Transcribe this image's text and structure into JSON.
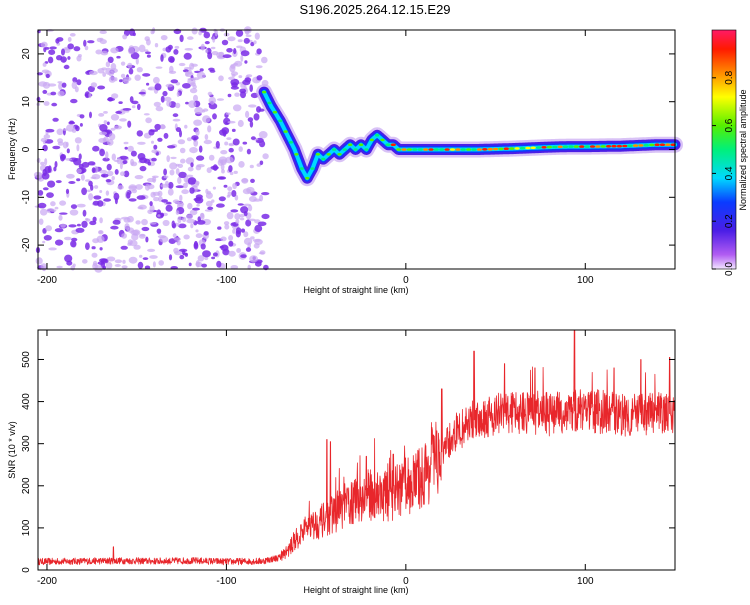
{
  "title": "S196.2025.264.12.15.E29",
  "colorbar": {
    "label": "Normalized spectral amplitude",
    "range": [
      0,
      1
    ],
    "ticks": [
      "0.0",
      "0.2",
      "0.4",
      "0.6",
      "0.8"
    ]
  },
  "colors": {
    "snr_line": "#e8262b",
    "grid_outline": "#000000",
    "noise_purple": "#7a2be6",
    "noise_purple_light": "#c9a8f2"
  },
  "chart_data": [
    {
      "type": "heatmap",
      "name": "spectrogram",
      "xlabel": "Height of straight line (km)",
      "ylabel": "Frequency (Hz)",
      "xlim": [
        -205,
        150
      ],
      "ylim": [
        -25,
        25
      ],
      "xticks": [
        -200,
        -100,
        0,
        100
      ],
      "yticks": [
        -20,
        -10,
        0,
        10,
        20
      ],
      "noise_region_x": [
        -205,
        -78
      ],
      "signal_ridge": {
        "x": [
          -79,
          -75,
          -70,
          -66,
          -62,
          -58,
          -55,
          -52,
          -49,
          -46,
          -43,
          -40,
          -37,
          -34,
          -31,
          -28,
          -25,
          -22,
          -19,
          -16,
          -13,
          -10,
          -7,
          -4,
          0,
          20,
          40,
          60,
          80,
          90,
          100,
          120,
          140,
          150
        ],
        "freq_hz": [
          12,
          9,
          6,
          3,
          0,
          -4,
          -6,
          -4,
          -1,
          -2,
          -1,
          0,
          -1,
          0,
          1,
          0,
          1,
          0,
          2,
          3,
          2,
          1,
          1,
          0,
          0,
          0,
          0,
          0.2,
          0.5,
          0.6,
          0.6,
          0.7,
          1,
          1
        ]
      }
    },
    {
      "type": "line",
      "name": "snr",
      "xlabel": "Height of straight line (km)",
      "ylabel": "SNR (10 * v/v)",
      "xlim": [
        -205,
        150
      ],
      "ylim": [
        0,
        570
      ],
      "xticks": [
        -200,
        -100,
        0,
        100
      ],
      "yticks": [
        0,
        100,
        200,
        300,
        400,
        500
      ],
      "envelope": {
        "x": [
          -205,
          -180,
          -160,
          -140,
          -120,
          -100,
          -80,
          -70,
          -65,
          -60,
          -55,
          -50,
          -45,
          -40,
          -35,
          -30,
          -25,
          -20,
          -15,
          -10,
          -5,
          0,
          5,
          10,
          15,
          20,
          25,
          30,
          35,
          40,
          50,
          60,
          70,
          80,
          90,
          100,
          110,
          120,
          130,
          140,
          150
        ],
        "base": [
          20,
          21,
          22,
          21,
          22,
          20,
          21,
          30,
          50,
          80,
          100,
          110,
          120,
          135,
          150,
          160,
          170,
          180,
          180,
          175,
          185,
          200,
          210,
          225,
          250,
          280,
          310,
          330,
          350,
          360,
          370,
          375,
          375,
          370,
          375,
          380,
          375,
          370,
          368,
          372,
          370
        ]
      },
      "peaks": [
        {
          "x": -163,
          "y": 55
        },
        {
          "x": -44,
          "y": 310
        },
        {
          "x": -42,
          "y": 305
        },
        {
          "x": -22,
          "y": 270
        },
        {
          "x": -7,
          "y": 275
        },
        {
          "x": 20,
          "y": 430
        },
        {
          "x": 38,
          "y": 520
        },
        {
          "x": 55,
          "y": 490
        },
        {
          "x": 72,
          "y": 480
        },
        {
          "x": 94,
          "y": 570
        },
        {
          "x": 116,
          "y": 480
        },
        {
          "x": 131,
          "y": 500
        },
        {
          "x": 147,
          "y": 505
        }
      ]
    }
  ]
}
